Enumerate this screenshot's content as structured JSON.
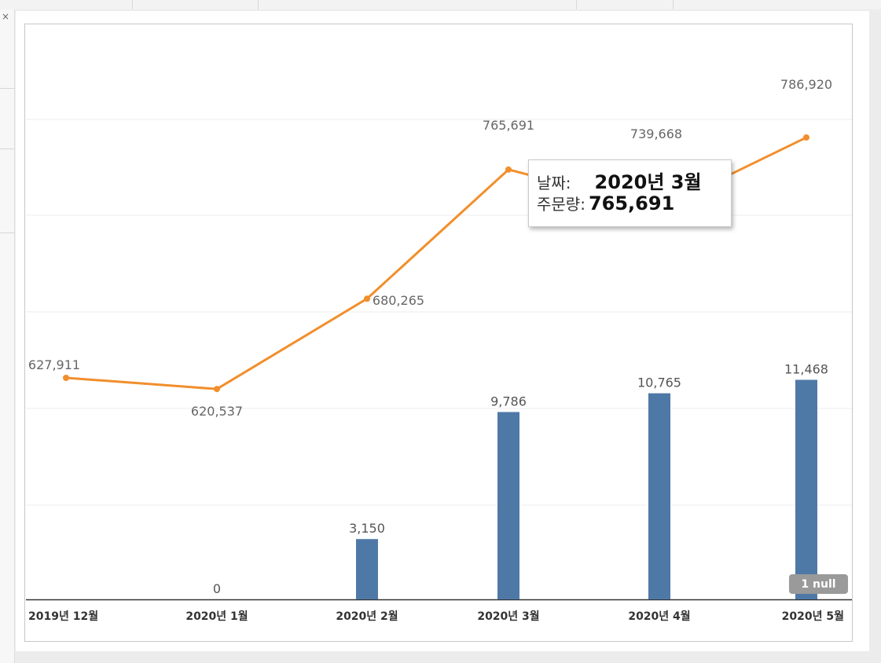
{
  "chart_data": {
    "type": "bar+line",
    "categories": [
      "2019년 12월",
      "2020년 1월",
      "2020년 2월",
      "2020년 3월",
      "2020년 4월",
      "2020년 5월"
    ],
    "series": [
      {
        "type": "line",
        "values": [
          627911,
          620537,
          680265,
          765691,
          739668,
          786920
        ],
        "labels": [
          "627,911",
          "620,537",
          "680,265",
          "765,691",
          "739,668",
          "786,920"
        ]
      },
      {
        "type": "bar",
        "values": [
          null,
          0,
          3150,
          9786,
          10765,
          11468
        ],
        "labels": [
          "",
          "0",
          "3,150",
          "9,786",
          "10,765",
          "11,468"
        ]
      }
    ],
    "ylim_line": [
      560000,
      800000
    ],
    "ylim_bar": [
      0,
      12000
    ],
    "grid": true,
    "colors": {
      "line": "#f28e2b",
      "bar": "#4e79a7"
    }
  },
  "tooltip": {
    "date_label": "날짜:",
    "date_value": "2020년 3월",
    "qty_label": "주문량:",
    "qty_value": "765,691"
  },
  "null_indicator": "1 null"
}
